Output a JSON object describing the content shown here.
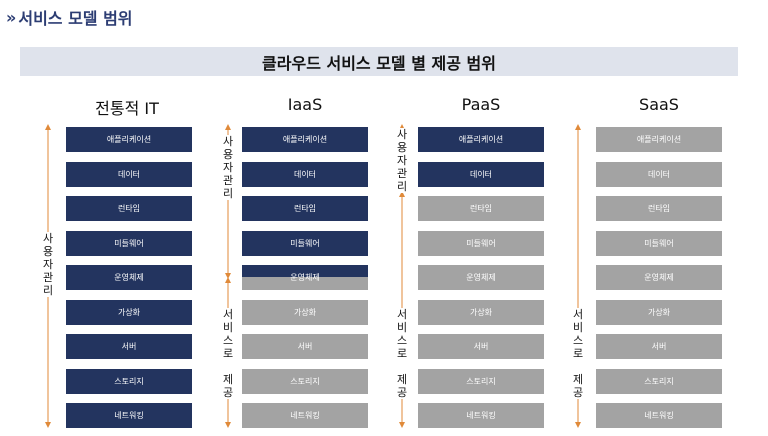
{
  "heading": {
    "chevron": "»",
    "text": "서비스 모델 범위"
  },
  "banner": "클라우드 서비스 모델 별 제공 범위",
  "columns": [
    {
      "title": "전통적 IT",
      "cells": [
        {
          "label": "애플리케이션",
          "owner": "user"
        },
        {
          "label": "데이터",
          "owner": "user"
        },
        {
          "label": "런타임",
          "owner": "user"
        },
        {
          "label": "미들웨어",
          "owner": "user"
        },
        {
          "label": "운영체제",
          "owner": "user"
        },
        {
          "label": "가상화",
          "owner": "user"
        },
        {
          "label": "서버",
          "owner": "user"
        },
        {
          "label": "스토리지",
          "owner": "user"
        },
        {
          "label": "네트워킹",
          "owner": "user"
        }
      ]
    },
    {
      "title": "IaaS",
      "cells": [
        {
          "label": "애플리케이션",
          "owner": "user"
        },
        {
          "label": "데이터",
          "owner": "user"
        },
        {
          "label": "런타임",
          "owner": "user"
        },
        {
          "label": "미들웨어",
          "owner": "user"
        },
        {
          "label": "운영체제",
          "owner": "split"
        },
        {
          "label": "가상화",
          "owner": "provider"
        },
        {
          "label": "서버",
          "owner": "provider"
        },
        {
          "label": "스토리지",
          "owner": "provider"
        },
        {
          "label": "네트워킹",
          "owner": "provider"
        }
      ]
    },
    {
      "title": "PaaS",
      "cells": [
        {
          "label": "애플리케이션",
          "owner": "user"
        },
        {
          "label": "데이터",
          "owner": "user"
        },
        {
          "label": "런타임",
          "owner": "provider"
        },
        {
          "label": "미들웨어",
          "owner": "provider"
        },
        {
          "label": "운영체제",
          "owner": "provider"
        },
        {
          "label": "가상화",
          "owner": "provider"
        },
        {
          "label": "서버",
          "owner": "provider"
        },
        {
          "label": "스토리지",
          "owner": "provider"
        },
        {
          "label": "네트워킹",
          "owner": "provider"
        }
      ]
    },
    {
      "title": "SaaS",
      "cells": [
        {
          "label": "애플리케이션",
          "owner": "provider"
        },
        {
          "label": "데이터",
          "owner": "provider"
        },
        {
          "label": "런타임",
          "owner": "provider"
        },
        {
          "label": "미들웨어",
          "owner": "provider"
        },
        {
          "label": "운영체제",
          "owner": "provider"
        },
        {
          "label": "가상화",
          "owner": "provider"
        },
        {
          "label": "서버",
          "owner": "provider"
        },
        {
          "label": "스토리지",
          "owner": "provider"
        },
        {
          "label": "네트워킹",
          "owner": "provider"
        }
      ]
    }
  ],
  "labels": {
    "user_managed": [
      "사",
      "용",
      "자",
      "관",
      "리"
    ],
    "service_provided": [
      "서",
      "비",
      "스",
      "로",
      "",
      "제",
      "공"
    ]
  },
  "colors": {
    "user": "#23345f",
    "provider": "#a3a3a3",
    "title": "#2c3d73",
    "banner": "#dfe3ec"
  }
}
